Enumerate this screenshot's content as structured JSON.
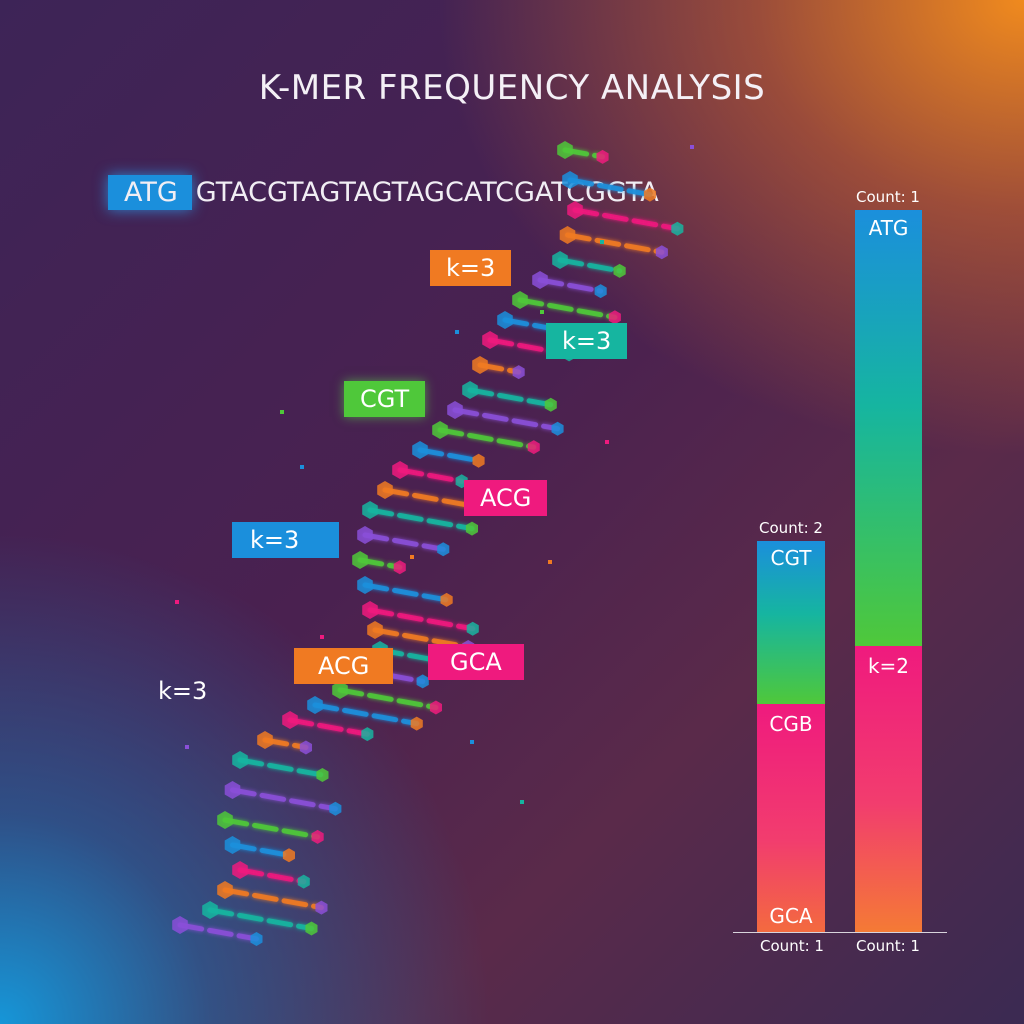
{
  "title": "K-MER FREQUENCY ANALYSIS",
  "sequence": {
    "highlight": "ATG",
    "rest": "GTACGTAGTAGTAGCATCGATCGGTA"
  },
  "tags": {
    "k3_top": "k=3",
    "k3_teal": "k=3",
    "cgt": "CGT",
    "acg_pink": "ACG",
    "k3_blue": "k=3",
    "acg_orange": "ACG",
    "gca": "GCA",
    "k3_plain": "k=3"
  },
  "colors": {
    "blue": "#1b8fdc",
    "orange": "#f07a22",
    "teal": "#16b5a0",
    "green": "#4fc83a",
    "pink": "#ef1a7e"
  },
  "chart_data": {
    "type": "bar",
    "bars": [
      {
        "top_count": "Count: 2",
        "bottom_count": "Count: 1",
        "segments": [
          "CGT",
          "CGB",
          "GCA"
        ]
      },
      {
        "top_count": "Count: 1",
        "bottom_count": "Count: 1",
        "segments": [
          "ATG",
          "k=2"
        ]
      }
    ]
  }
}
